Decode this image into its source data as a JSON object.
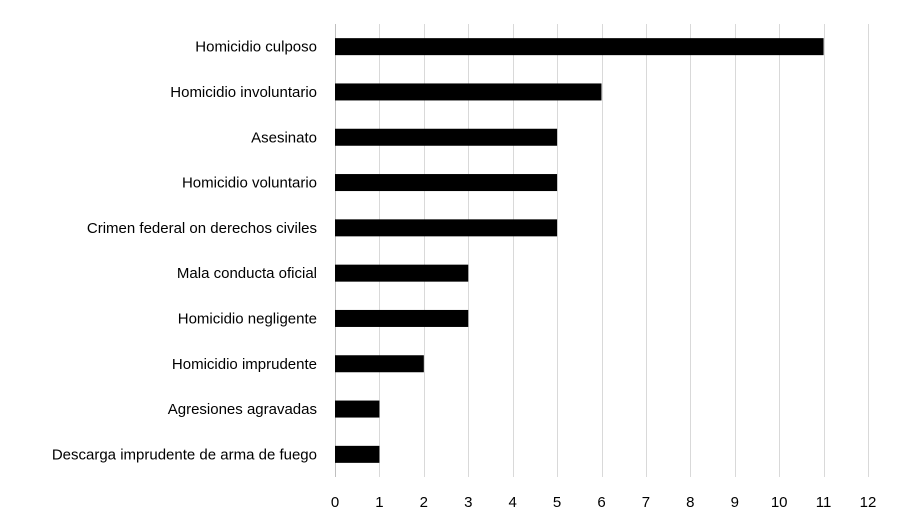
{
  "chart_data": {
    "type": "bar",
    "orientation": "horizontal",
    "title": "",
    "xlabel": "",
    "ylabel": "",
    "categories": [
      "Homicidio culposo",
      "Homicidio involuntario",
      "Asesinato",
      "Homicidio voluntario",
      "Crimen federal on derechos civiles",
      "Mala conducta oficial",
      "Homicidio negligente",
      "Homicidio imprudente",
      "Agresiones agravadas",
      "Descarga imprudente de arma de fuego"
    ],
    "values": [
      11,
      6,
      5,
      5,
      5,
      3,
      3,
      2,
      1,
      1
    ],
    "xlim": [
      0,
      12
    ],
    "xticks": [
      "0",
      "1",
      "2",
      "3",
      "4",
      "5",
      "6",
      "7",
      "8",
      "9",
      "10",
      "11",
      "12"
    ],
    "grid": true,
    "legend": "none",
    "bar_color": "#000000",
    "grid_color": "#d9d9d9"
  }
}
